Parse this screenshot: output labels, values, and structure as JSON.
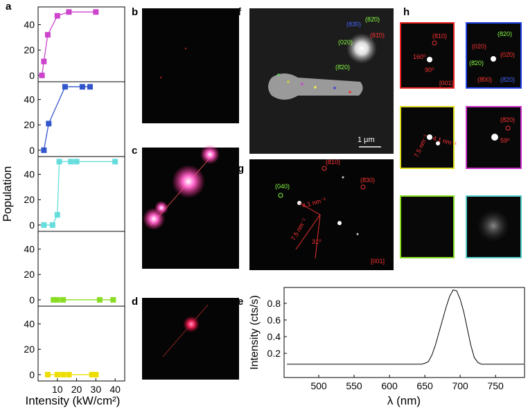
{
  "panel_labels": [
    "a",
    "b",
    "c",
    "d",
    "e",
    "f",
    "g",
    "h"
  ],
  "panel_f": {
    "labels": [
      "(83̄0)",
      "(82̄0)",
      "(81̄0)",
      "(020)",
      "(8̄20)"
    ],
    "scale_bar": "1 μm"
  },
  "panel_g": {
    "labels": [
      "(810)",
      "(8̄30)",
      "(040)",
      "4.1 nm⁻¹",
      "7.5 nm⁻¹",
      "31⁰",
      "[001]"
    ]
  },
  "panel_h": {
    "tile_1": [
      "(810)",
      "160⁰",
      "90⁰",
      "[001]"
    ],
    "tile_2": [
      "(820)",
      "(020)",
      "(02̄0)",
      "(8̄20)",
      "(8̄00)",
      "(8̄20)"
    ],
    "tile_3": [
      "7.5 nm⁻¹",
      "4.1 nm⁻¹"
    ],
    "tile_4": [
      "(8̄20)",
      "59⁰"
    ]
  },
  "chart_data": [
    {
      "type": "line",
      "x": [
        2,
        3,
        5,
        10,
        16,
        30
      ],
      "values": [
        0,
        11,
        32,
        47,
        50,
        50
      ],
      "color": "#cc44cc",
      "xlim": [
        0,
        45
      ],
      "ylim": [
        -5,
        54
      ],
      "yticks": [
        0,
        20,
        40
      ]
    },
    {
      "type": "line",
      "x": [
        3,
        5.5,
        14,
        23,
        27
      ],
      "values": [
        0,
        21,
        50,
        50,
        50
      ],
      "color": "#3355cc",
      "xlim": [
        0,
        45
      ],
      "ylim": [
        -5,
        54
      ],
      "yticks": [
        0,
        20,
        40
      ]
    },
    {
      "type": "line",
      "x": [
        3,
        7.5,
        10,
        11,
        17,
        20,
        40
      ],
      "values": [
        0,
        0,
        8,
        50,
        50,
        50,
        50
      ],
      "color": "#66dddd",
      "xlim": [
        0,
        45
      ],
      "ylim": [
        -5,
        54
      ],
      "yticks": [
        0,
        20,
        40
      ],
      "ylabel": "Population"
    },
    {
      "type": "line",
      "x": [
        8,
        10,
        13,
        32,
        39
      ],
      "values": [
        0,
        0,
        0,
        0,
        0
      ],
      "color": "#88dd22",
      "xlim": [
        0,
        45
      ],
      "ylim": [
        -5,
        54
      ],
      "yticks": [
        0,
        20,
        40
      ]
    },
    {
      "type": "line",
      "x": [
        5,
        10,
        13,
        16,
        28,
        30
      ],
      "values": [
        0,
        0,
        0,
        0,
        0,
        0
      ],
      "color": "#eedd00",
      "xlim": [
        0,
        45
      ],
      "ylim": [
        -5,
        54
      ],
      "yticks": [
        0,
        20,
        40
      ],
      "xticks": [
        10,
        20,
        30,
        40
      ],
      "xlabel": "Intensity (kW/cm²)"
    },
    {
      "type": "spectrum",
      "x": [
        455,
        480,
        505,
        530,
        555,
        580,
        605,
        630,
        645,
        650,
        655,
        660,
        665,
        670,
        675,
        680,
        685,
        690,
        695,
        700,
        705,
        710,
        715,
        720,
        725,
        730,
        735,
        760,
        790
      ],
      "values": [
        0.07,
        0.07,
        0.07,
        0.07,
        0.07,
        0.07,
        0.07,
        0.07,
        0.07,
        0.08,
        0.1,
        0.18,
        0.3,
        0.45,
        0.6,
        0.75,
        0.88,
        0.96,
        0.95,
        0.85,
        0.7,
        0.5,
        0.3,
        0.15,
        0.09,
        0.07,
        0.07,
        0.07,
        0.07
      ],
      "color": "#000000",
      "xlim": [
        451,
        791
      ],
      "ylim": [
        -0.09,
        0.99
      ],
      "xticks": [
        500,
        550,
        600,
        650,
        700,
        750
      ],
      "yticks": [
        0.2,
        0.4,
        0.6,
        0.8
      ],
      "xlabel": "λ (nm)",
      "ylabel": "Intensity (cts/s)"
    }
  ]
}
